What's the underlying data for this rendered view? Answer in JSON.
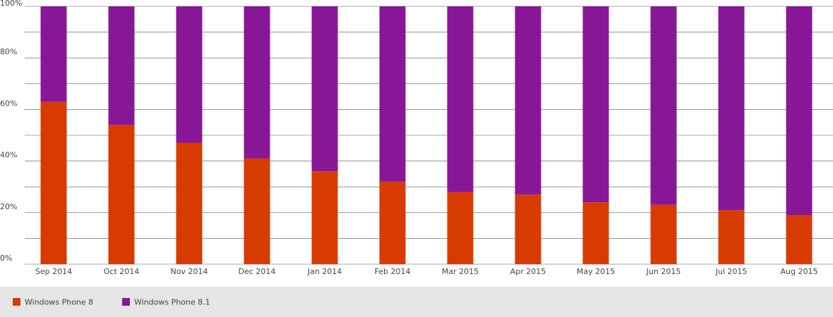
{
  "chart_data": {
    "type": "stacked_bar",
    "categories": [
      "Sep 2014",
      "Oct 2014",
      "Nov 2014",
      "Dec 2014",
      "Jan 2014",
      "Feb 2014",
      "Mar 2015",
      "Apr 2015",
      "May 2015",
      "Jun 2015",
      "Jul 2015",
      "Aug 2015"
    ],
    "series": [
      {
        "name": "Windows Phone 8",
        "color": "#d83b01",
        "values": [
          63,
          54,
          47,
          41,
          36,
          32,
          28,
          27,
          24,
          23,
          21,
          19
        ]
      },
      {
        "name": "Windows Phone 8.1",
        "color": "#881798",
        "values": [
          37,
          46,
          53,
          59,
          64,
          68,
          72,
          73,
          76,
          77,
          79,
          81
        ]
      }
    ],
    "ylim": [
      0,
      100
    ],
    "yticks": [
      {
        "value": 0,
        "label": "0%"
      },
      {
        "value": 20,
        "label": "20%"
      },
      {
        "value": 40,
        "label": "40%"
      },
      {
        "value": 60,
        "label": "60%"
      },
      {
        "value": 80,
        "label": "80%"
      },
      {
        "value": 100,
        "label": "100%"
      }
    ],
    "minor_yticks": [
      10,
      30,
      50,
      70,
      90
    ],
    "grid": true,
    "legend": "bottom"
  }
}
